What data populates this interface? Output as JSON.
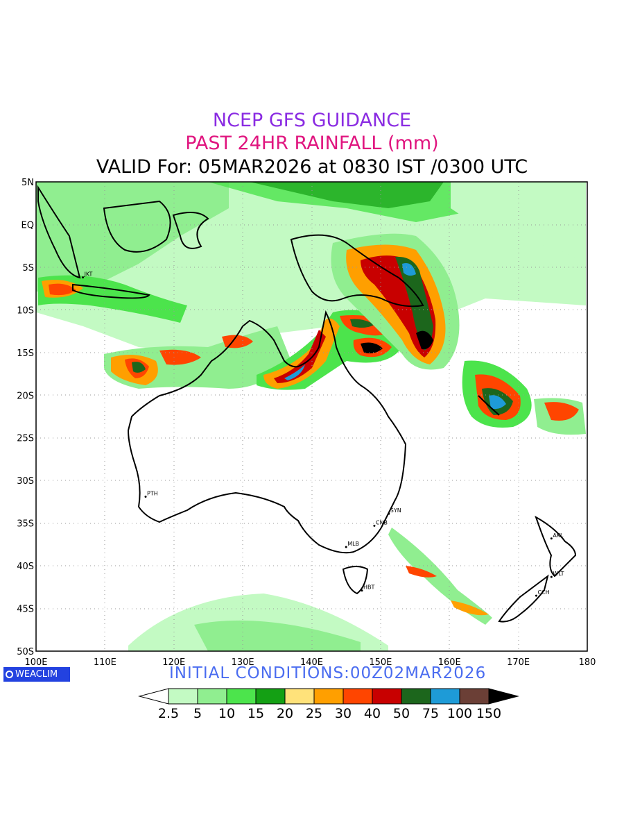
{
  "header": {
    "line1": "NCEP GFS GUIDANCE",
    "line2": "PAST 24HR RAINFALL (mm)",
    "line3": "VALID For: 05MAR2026 at 0830 IST /0300 UTC"
  },
  "map": {
    "lon_range": [
      100,
      180
    ],
    "lat_range": [
      -50,
      5
    ],
    "x_ticks": [
      "100E",
      "110E",
      "120E",
      "130E",
      "140E",
      "150E",
      "160E",
      "170E",
      "180"
    ],
    "y_ticks": [
      "5N",
      "EQ",
      "5S",
      "10S",
      "15S",
      "20S",
      "25S",
      "30S",
      "35S",
      "40S",
      "45S",
      "50S"
    ],
    "grid": "dotted",
    "cities": [
      {
        "name": "PTH",
        "lon": 115.9,
        "lat": -31.9
      },
      {
        "name": "SYN",
        "lon": 151.2,
        "lat": -33.9
      },
      {
        "name": "CNB",
        "lon": 149.1,
        "lat": -35.3
      },
      {
        "name": "MLB",
        "lon": 145.0,
        "lat": -37.8
      },
      {
        "name": "HBT",
        "lon": 147.3,
        "lat": -42.9
      },
      {
        "name": "CCH",
        "lon": 172.6,
        "lat": -43.5
      },
      {
        "name": "WLT",
        "lon": 174.8,
        "lat": -41.3
      },
      {
        "name": "AKL",
        "lon": 174.8,
        "lat": -36.8
      },
      {
        "name": "JKT",
        "lon": 106.8,
        "lat": -6.2
      }
    ]
  },
  "footer": {
    "initial_conditions": "INITIAL CONDITIONS:00Z02MAR2026",
    "logo": "WEACLIM"
  },
  "colorbar": {
    "levels": [
      "2.5",
      "5",
      "10",
      "15",
      "20",
      "25",
      "30",
      "40",
      "50",
      "75",
      "100",
      "150"
    ],
    "colors": [
      "#ffffff",
      "#c3fac3",
      "#90ee90",
      "#4ce44c",
      "#14a014",
      "#ffe27a",
      "#ff9f00",
      "#ff4500",
      "#c80000",
      "#1c661c",
      "#1e9bd7",
      "#6b3f36",
      "#000000"
    ]
  }
}
